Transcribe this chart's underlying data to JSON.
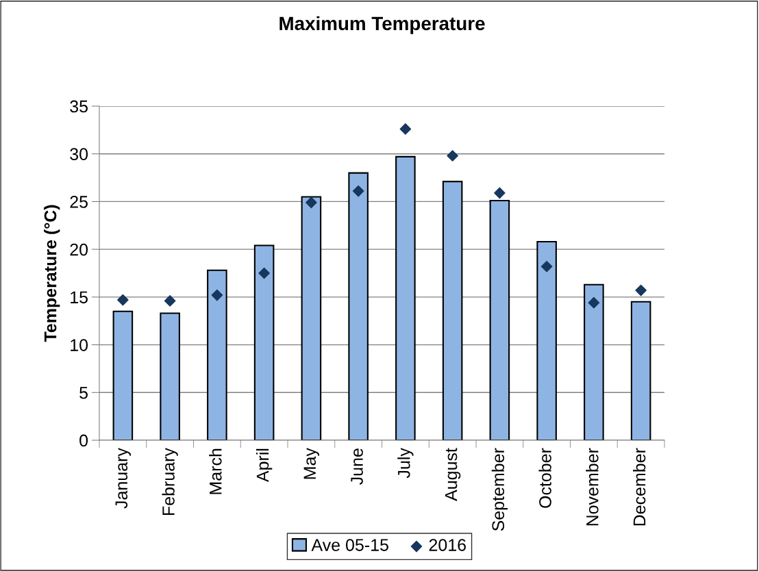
{
  "chart_data": {
    "type": "bar",
    "title": "Maximum Temperature",
    "ylabel": "Temperature (°C)",
    "categories": [
      "January",
      "February",
      "March",
      "April",
      "May",
      "June",
      "July",
      "August",
      "September",
      "October",
      "November",
      "December"
    ],
    "series": [
      {
        "name": "Ave 05-15",
        "color": "#8eb4e3",
        "values": [
          13.5,
          13.3,
          17.8,
          20.4,
          25.5,
          28.0,
          29.7,
          27.1,
          25.1,
          20.8,
          16.3,
          14.5
        ]
      },
      {
        "name": "2016",
        "type": "scatter",
        "color": "#17375e",
        "marker": "diamond",
        "values": [
          14.7,
          14.6,
          15.2,
          17.5,
          24.9,
          26.1,
          32.6,
          29.8,
          25.9,
          18.2,
          14.4,
          15.7
        ]
      }
    ],
    "ylim": [
      0,
      35
    ],
    "yticks": [
      0,
      5,
      10,
      15,
      20,
      25,
      30,
      35
    ],
    "grid": "y",
    "legend": "bottom"
  }
}
